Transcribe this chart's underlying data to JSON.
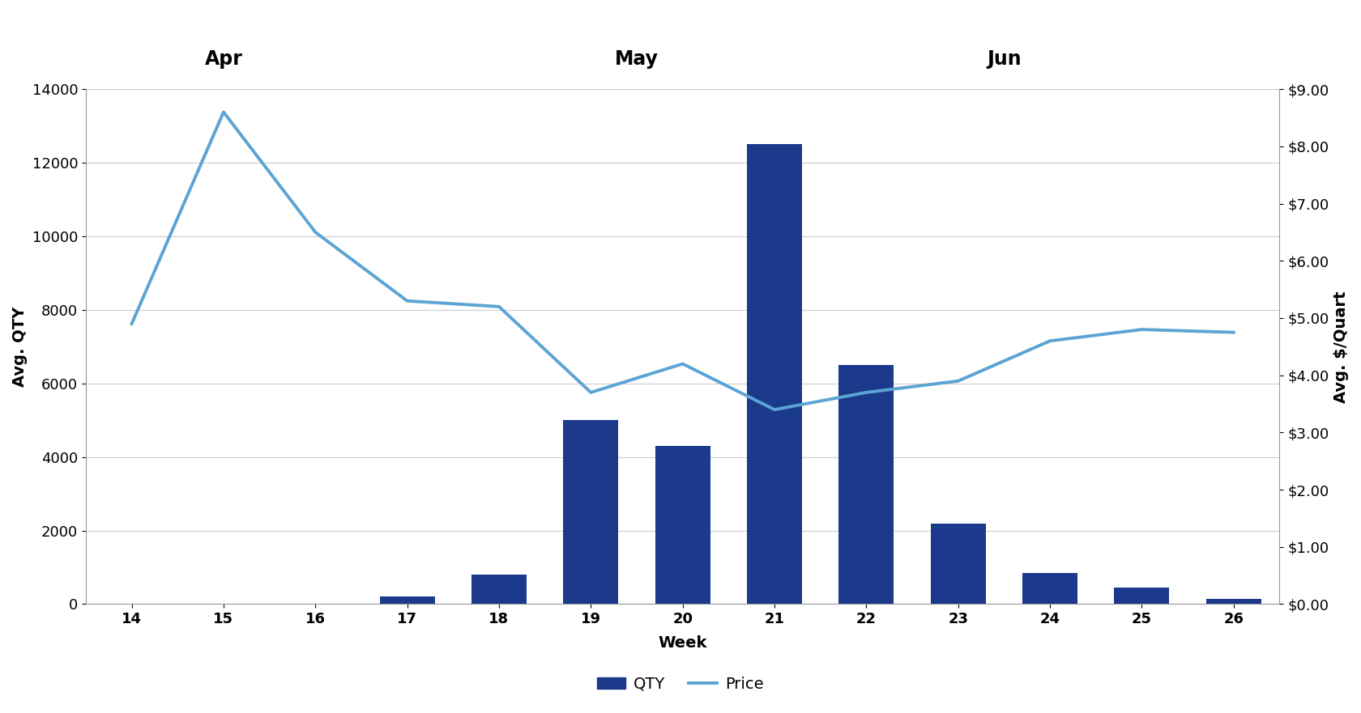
{
  "weeks": [
    14,
    15,
    16,
    17,
    18,
    19,
    20,
    21,
    22,
    23,
    24,
    25,
    26
  ],
  "qty": [
    0,
    0,
    0,
    200,
    800,
    5000,
    4300,
    12500,
    6500,
    2200,
    850,
    450,
    150
  ],
  "price": [
    4.9,
    8.6,
    6.5,
    5.3,
    5.2,
    3.7,
    4.2,
    3.4,
    3.7,
    3.9,
    4.6,
    4.8,
    4.75
  ],
  "bar_color": "#1B3A8C",
  "line_color": "#5BA4D4",
  "ylabel_left": "Avg. QTY",
  "ylabel_right": "Avg. $/Quart",
  "xlabel": "Week",
  "ylim_left": [
    0,
    14000
  ],
  "ylim_right": [
    0,
    9.0
  ],
  "yticks_left": [
    0,
    2000,
    4000,
    6000,
    8000,
    10000,
    12000,
    14000
  ],
  "yticks_right": [
    0.0,
    1.0,
    2.0,
    3.0,
    4.0,
    5.0,
    6.0,
    7.0,
    8.0,
    9.0
  ],
  "month_labels": [
    {
      "label": "Apr",
      "x": 15.0
    },
    {
      "label": "May",
      "x": 19.5
    },
    {
      "label": "Jun",
      "x": 23.5
    }
  ],
  "legend_labels": [
    "QTY",
    "Price"
  ],
  "background_color": "#ffffff",
  "grid_color": "#cccccc",
  "axis_fontsize": 14,
  "tick_fontsize": 13,
  "month_fontsize": 17,
  "line_width": 2.8,
  "bar_width": 0.6
}
